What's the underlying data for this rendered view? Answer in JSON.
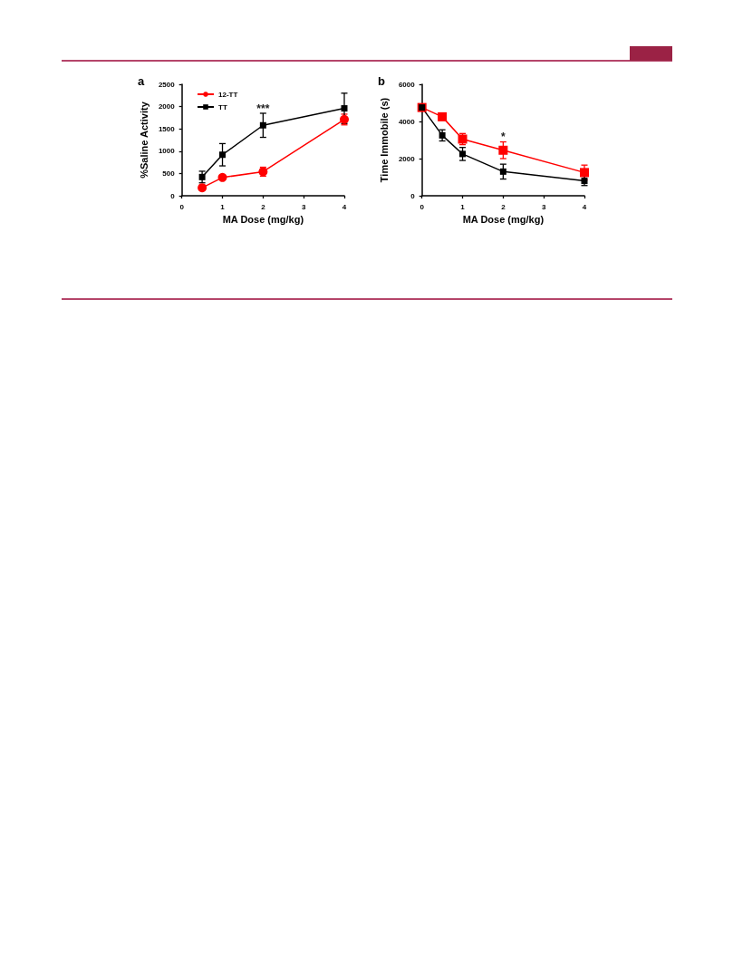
{
  "chart_data": [
    {
      "type": "line",
      "title": "a",
      "xlabel": "MA Dose (mg/kg)",
      "ylabel": "%Saline Activity",
      "x": [
        0.5,
        1,
        2,
        4
      ],
      "xlim": [
        0,
        4
      ],
      "xticks": [
        0,
        1,
        2,
        3,
        4
      ],
      "ylim": [
        0,
        2500
      ],
      "yticks": [
        0,
        500,
        1000,
        1500,
        2000,
        2500
      ],
      "grid": false,
      "legend": "top left",
      "annotations": [
        {
          "text": "***",
          "x": 2,
          "y": 1950
        }
      ],
      "series": [
        {
          "name": "12-TT",
          "color": "#ff0000",
          "marker": "circle",
          "values": [
            180,
            410,
            540,
            1710
          ],
          "errors": [
            40,
            40,
            100,
            120
          ]
        },
        {
          "name": "TT",
          "color": "#000000",
          "marker": "square",
          "values": [
            420,
            920,
            1580,
            1960
          ],
          "errors": [
            130,
            250,
            270,
            340
          ]
        }
      ]
    },
    {
      "type": "line",
      "title": "b",
      "xlabel": "MA Dose (mg/kg)",
      "ylabel": "Time Immobile (s)",
      "x": [
        0,
        0.5,
        1,
        2,
        4
      ],
      "xlim": [
        0,
        4
      ],
      "xticks": [
        0,
        1,
        2,
        3,
        4
      ],
      "ylim": [
        0,
        6000
      ],
      "yticks": [
        0,
        2000,
        4000,
        6000
      ],
      "grid": false,
      "legend": false,
      "annotations": [
        {
          "text": "*",
          "x": 2,
          "y": 3150
        }
      ],
      "series": [
        {
          "color": "#ff0000",
          "marker": "square",
          "values": [
            4750,
            4250,
            3050,
            2450,
            1250
          ],
          "errors": [
            null,
            150,
            300,
            450,
            400
          ]
        },
        {
          "color": "#000000",
          "marker": "square",
          "values": [
            4750,
            3250,
            2250,
            1300,
            800
          ],
          "errors": [
            null,
            300,
            350,
            400,
            250
          ]
        }
      ]
    }
  ]
}
